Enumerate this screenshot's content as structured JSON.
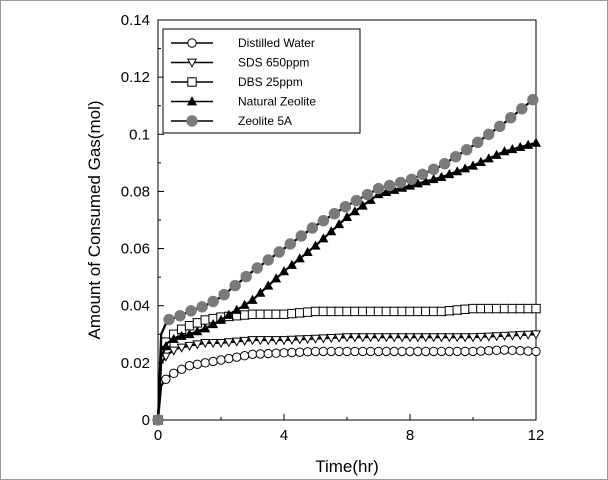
{
  "chart_data": {
    "type": "line",
    "xlabel": "Time(hr)",
    "ylabel": "Amount of Consumed Gas(mol)",
    "xlim": [
      0,
      12
    ],
    "ylim": [
      0,
      0.14
    ],
    "xticks": [
      0,
      4,
      8,
      12
    ],
    "xtick_labels": [
      "0",
      "4",
      "8",
      "12"
    ],
    "yticks": [
      0,
      0.02,
      0.04,
      0.06,
      0.08,
      0.1,
      0.12,
      0.14
    ],
    "ytick_labels": [
      "0",
      "0.02",
      "0.04",
      "0.06",
      "0.08",
      "0.1",
      "0.12",
      "0.14"
    ],
    "grid": false,
    "legend_position": "top-left",
    "series": [
      {
        "name": "Distilled Water",
        "marker": "open-circle",
        "x": [
          0,
          0.1,
          0.3,
          0.6,
          1.0,
          1.5,
          2.0,
          2.5,
          3.0,
          4.0,
          5.0,
          6.0,
          7.0,
          8.0,
          9.0,
          10.0,
          11.0,
          12.0
        ],
        "y": [
          0,
          0.012,
          0.015,
          0.017,
          0.019,
          0.02,
          0.021,
          0.022,
          0.023,
          0.0235,
          0.024,
          0.024,
          0.024,
          0.024,
          0.024,
          0.024,
          0.0245,
          0.024
        ]
      },
      {
        "name": "SDS 650ppm",
        "marker": "open-triangle-down",
        "x": [
          0,
          0.1,
          0.3,
          0.6,
          1.0,
          1.5,
          2.0,
          3.0,
          4.0,
          5.0,
          6.0,
          7.0,
          8.0,
          9.0,
          10.0,
          11.0,
          12.0
        ],
        "y": [
          0,
          0.02,
          0.023,
          0.025,
          0.026,
          0.027,
          0.027,
          0.028,
          0.028,
          0.0285,
          0.029,
          0.029,
          0.029,
          0.029,
          0.029,
          0.0295,
          0.03
        ]
      },
      {
        "name": "DBS 25ppm",
        "marker": "open-square",
        "x": [
          0,
          0.1,
          0.3,
          0.6,
          1.0,
          1.5,
          2.0,
          3.0,
          4.0,
          5.0,
          6.0,
          7.0,
          8.0,
          9.0,
          10.0,
          11.0,
          12.0
        ],
        "y": [
          0,
          0.025,
          0.028,
          0.031,
          0.033,
          0.035,
          0.036,
          0.037,
          0.037,
          0.038,
          0.038,
          0.038,
          0.038,
          0.038,
          0.039,
          0.039,
          0.039
        ]
      },
      {
        "name": "Natural Zeolite",
        "marker": "filled-triangle-up",
        "x": [
          0,
          0.1,
          0.3,
          0.6,
          1.0,
          1.5,
          2.0,
          3.0,
          4.0,
          5.0,
          6.0,
          7.0,
          8.0,
          9.0,
          10.0,
          11.0,
          12.0
        ],
        "y": [
          0,
          0.022,
          0.027,
          0.029,
          0.03,
          0.032,
          0.035,
          0.042,
          0.052,
          0.061,
          0.071,
          0.079,
          0.082,
          0.085,
          0.089,
          0.094,
          0.097
        ]
      },
      {
        "name": "Zeolite 5A",
        "marker": "filled-circle",
        "x": [
          0,
          0.1,
          0.3,
          0.6,
          1.0,
          1.5,
          2.0,
          3.0,
          4.0,
          5.0,
          6.0,
          7.0,
          8.0,
          9.0,
          10.0,
          11.0,
          12.0
        ],
        "y": [
          0,
          0.03,
          0.035,
          0.036,
          0.038,
          0.04,
          0.043,
          0.052,
          0.06,
          0.068,
          0.075,
          0.081,
          0.084,
          0.089,
          0.096,
          0.104,
          0.113
        ]
      }
    ]
  }
}
